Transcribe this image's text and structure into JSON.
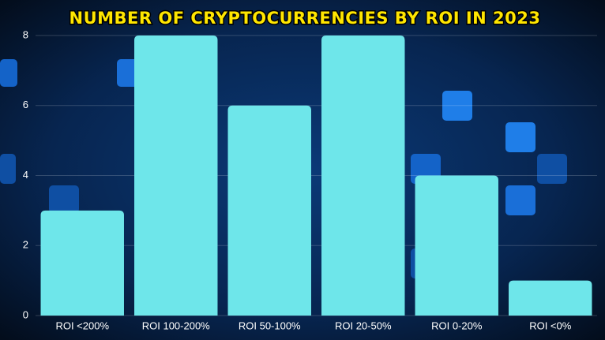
{
  "chart_data": {
    "type": "bar",
    "title": "NUMBER OF CRYPTOCURRENCIES BY ROI IN 2023",
    "categories": [
      "ROI <200%",
      "ROI 100-200%",
      "ROI 50-100%",
      "ROI 20-50%",
      "ROI 0-20%",
      "ROI <0%"
    ],
    "values": [
      3,
      8,
      6,
      8,
      4,
      1
    ],
    "color": "#6ee6ea",
    "ylim": [
      0,
      8
    ],
    "yticks": [
      0,
      2,
      4,
      6,
      8
    ],
    "grid": true
  }
}
